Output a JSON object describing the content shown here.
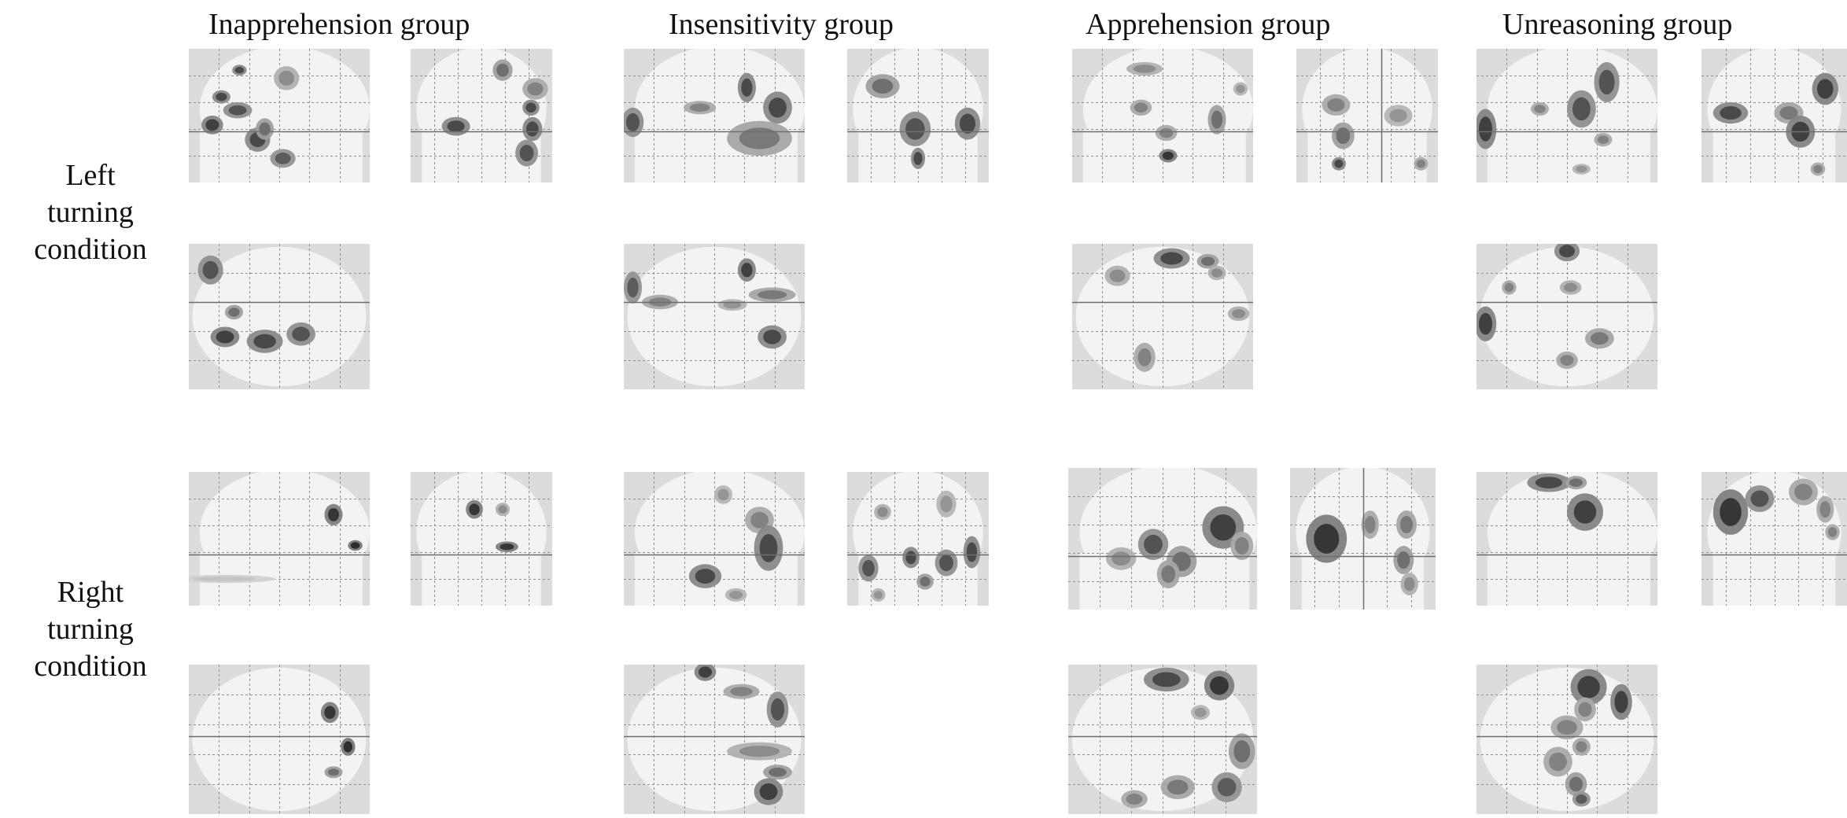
{
  "groups": [
    {
      "label": "Inapprehension group"
    },
    {
      "label": "Insensitivity group"
    },
    {
      "label": "Apprehension group"
    },
    {
      "label": "Unreasoning group"
    }
  ],
  "conditions": [
    {
      "label_lines": [
        "Left",
        "turning",
        "condition"
      ]
    },
    {
      "label_lines": [
        "Right",
        "turning",
        "condition"
      ]
    }
  ],
  "panel_views": [
    "sagittal",
    "coronal",
    "axial"
  ]
}
